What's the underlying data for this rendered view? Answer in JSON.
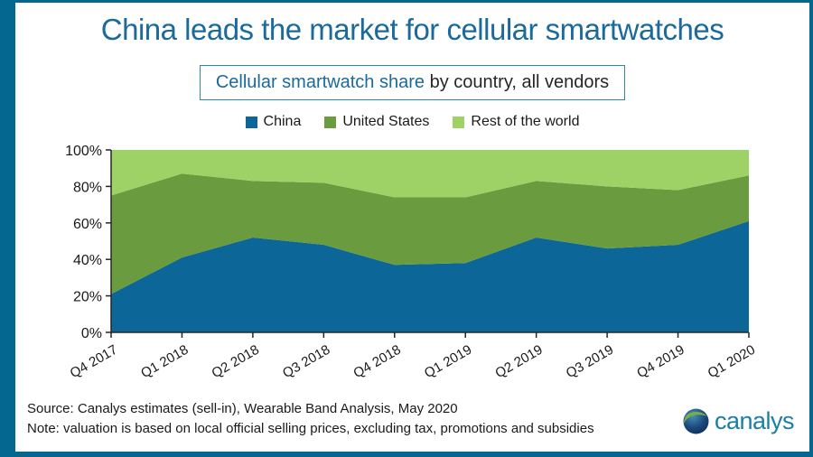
{
  "frame": {
    "border_color": "#04678F"
  },
  "title": {
    "text": "China leads the market for cellular smartwatches",
    "color": "#1B6A9B"
  },
  "subtitle": {
    "highlight": "Cellular smartwatch share",
    "rest": " by country, all vendors",
    "highlight_color": "#1B6A9B",
    "text_color": "#262626",
    "border_color": "#2E86AB"
  },
  "chart_data": {
    "type": "area",
    "stacked": true,
    "units": "% share",
    "title": "Cellular smartwatch share by country, all vendors",
    "categories": [
      "Q4 2017",
      "Q1 2018",
      "Q2 2018",
      "Q3 2018",
      "Q4 2018",
      "Q1 2019",
      "Q2 2019",
      "Q3 2019",
      "Q4 2019",
      "Q1 2020"
    ],
    "series": [
      {
        "name": "China",
        "color": "#0C6697",
        "values": [
          21,
          41,
          52,
          48,
          37,
          38,
          52,
          46,
          48,
          61
        ]
      },
      {
        "name": "United States",
        "color": "#6A9C3F",
        "values": [
          54,
          46,
          31,
          34,
          37,
          36,
          31,
          34,
          30,
          25
        ]
      },
      {
        "name": "Rest of the world",
        "color": "#9FD266",
        "values": [
          25,
          13,
          17,
          18,
          26,
          26,
          17,
          20,
          22,
          14
        ]
      }
    ],
    "ylim": [
      0,
      100
    ],
    "y_tick_labels": [
      "0%",
      "20%",
      "40%",
      "60%",
      "80%",
      "100%"
    ],
    "grid": false,
    "legend_position": "top",
    "axis_color": "#262626"
  },
  "footer": {
    "source": "Source: Canalys estimates (sell-in), Wearable Band Analysis, May 2020",
    "note": "Note: valuation is based on local official selling prices, excluding tax, promotions and subsidies"
  },
  "logo": {
    "text": "canalys",
    "color": "#1A7FA8"
  }
}
